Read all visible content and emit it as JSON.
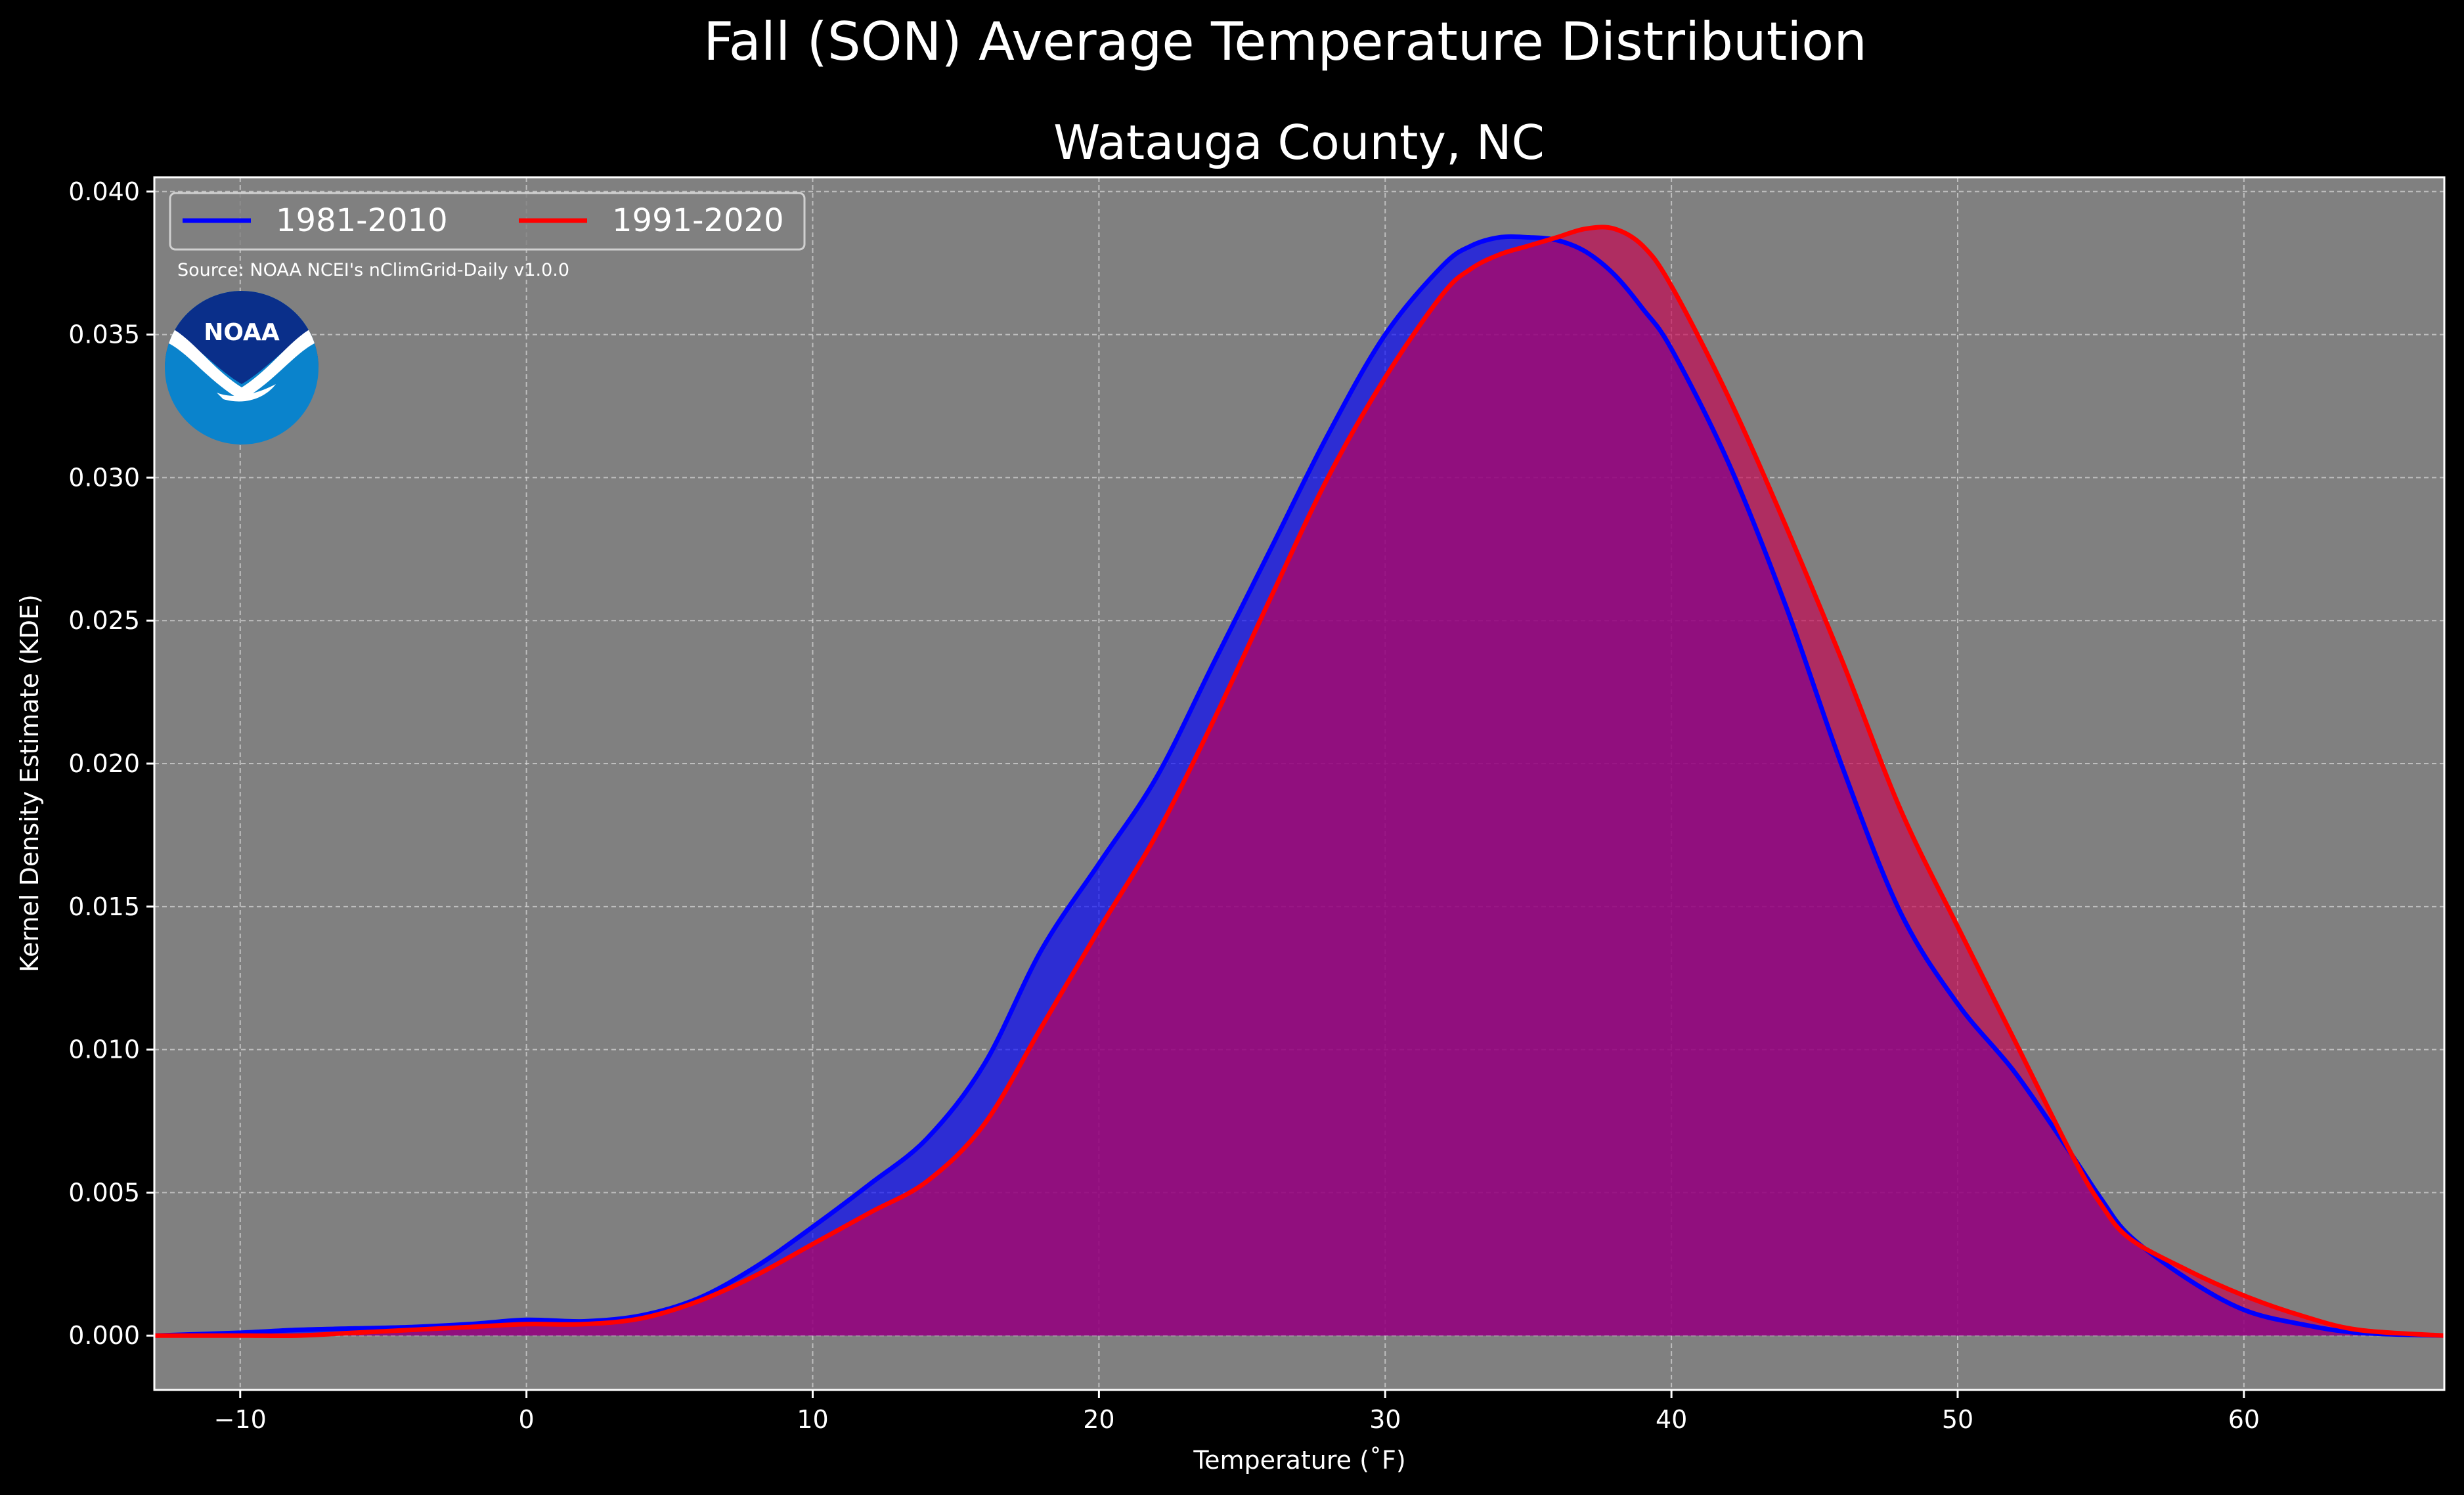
{
  "chart_data": {
    "type": "area",
    "suptitle": "Fall (SON) Average Temperature Distribution",
    "title": "Watauga County, NC",
    "xlabel": "Temperature ($^\\circ$F)",
    "xlabel_display": "Temperature (˚F)",
    "ylabel": "Kernel Density Estimate (KDE)",
    "xlim": [
      -13,
      67
    ],
    "ylim": [
      -0.0019,
      0.0405
    ],
    "xticks": [
      -10,
      0,
      10,
      20,
      30,
      40,
      50,
      60
    ],
    "xtick_labels": [
      "−10",
      "0",
      "10",
      "20",
      "30",
      "40",
      "50",
      "60"
    ],
    "yticks": [
      0.0,
      0.005,
      0.01,
      0.015,
      0.02,
      0.025,
      0.03,
      0.035,
      0.04
    ],
    "ytick_labels": [
      "0.000",
      "0.005",
      "0.010",
      "0.015",
      "0.020",
      "0.025",
      "0.030",
      "0.035",
      "0.040"
    ],
    "grid": true,
    "legend_position": "top-left",
    "annotation": "Source: NOAA NCEI's nClimGrid-Daily v1.0.0",
    "logo_text": "NOAA",
    "background_color": "#000000",
    "plot_bg_color": "#808080",
    "x": [
      -13,
      -10,
      -8,
      -6,
      -4,
      -2,
      0,
      2,
      4,
      6,
      8,
      10,
      12,
      14,
      16,
      18,
      20,
      22,
      24,
      26,
      28,
      30,
      32,
      33,
      34,
      35,
      36,
      37,
      38,
      39,
      40,
      42,
      44,
      46,
      48,
      50,
      52,
      54,
      55,
      56,
      58,
      60,
      62,
      64,
      67
    ],
    "series": [
      {
        "name": "1981-2010",
        "color": "#0000ff",
        "fill": "#0000ff",
        "values": [
          0.0,
          0.0001,
          0.0002,
          0.00025,
          0.0003,
          0.0004,
          0.00055,
          0.0005,
          0.0007,
          0.0013,
          0.0024,
          0.0038,
          0.0053,
          0.0069,
          0.0095,
          0.0135,
          0.0165,
          0.0195,
          0.0235,
          0.0275,
          0.0315,
          0.035,
          0.0374,
          0.0381,
          0.0384,
          0.0384,
          0.0383,
          0.0379,
          0.0371,
          0.0359,
          0.0345,
          0.0305,
          0.0255,
          0.0198,
          0.0148,
          0.0116,
          0.0092,
          0.0063,
          0.0048,
          0.0035,
          0.002,
          0.0009,
          0.0004,
          0.0001,
          0.0
        ]
      },
      {
        "name": "1991-2020",
        "color": "#ff0000",
        "fill": "#c80050",
        "values": [
          0.0,
          0.0,
          0.0,
          0.0001,
          0.0002,
          0.0003,
          0.0004,
          0.0004,
          0.0006,
          0.0012,
          0.0021,
          0.0032,
          0.0043,
          0.0054,
          0.0074,
          0.0108,
          0.0142,
          0.0175,
          0.0215,
          0.0258,
          0.03,
          0.0335,
          0.0364,
          0.0373,
          0.0378,
          0.0381,
          0.0384,
          0.0387,
          0.0387,
          0.0381,
          0.0367,
          0.0328,
          0.0283,
          0.0235,
          0.0184,
          0.0143,
          0.0103,
          0.0063,
          0.0046,
          0.0034,
          0.0023,
          0.0014,
          0.0007,
          0.0002,
          0.0
        ]
      }
    ]
  }
}
